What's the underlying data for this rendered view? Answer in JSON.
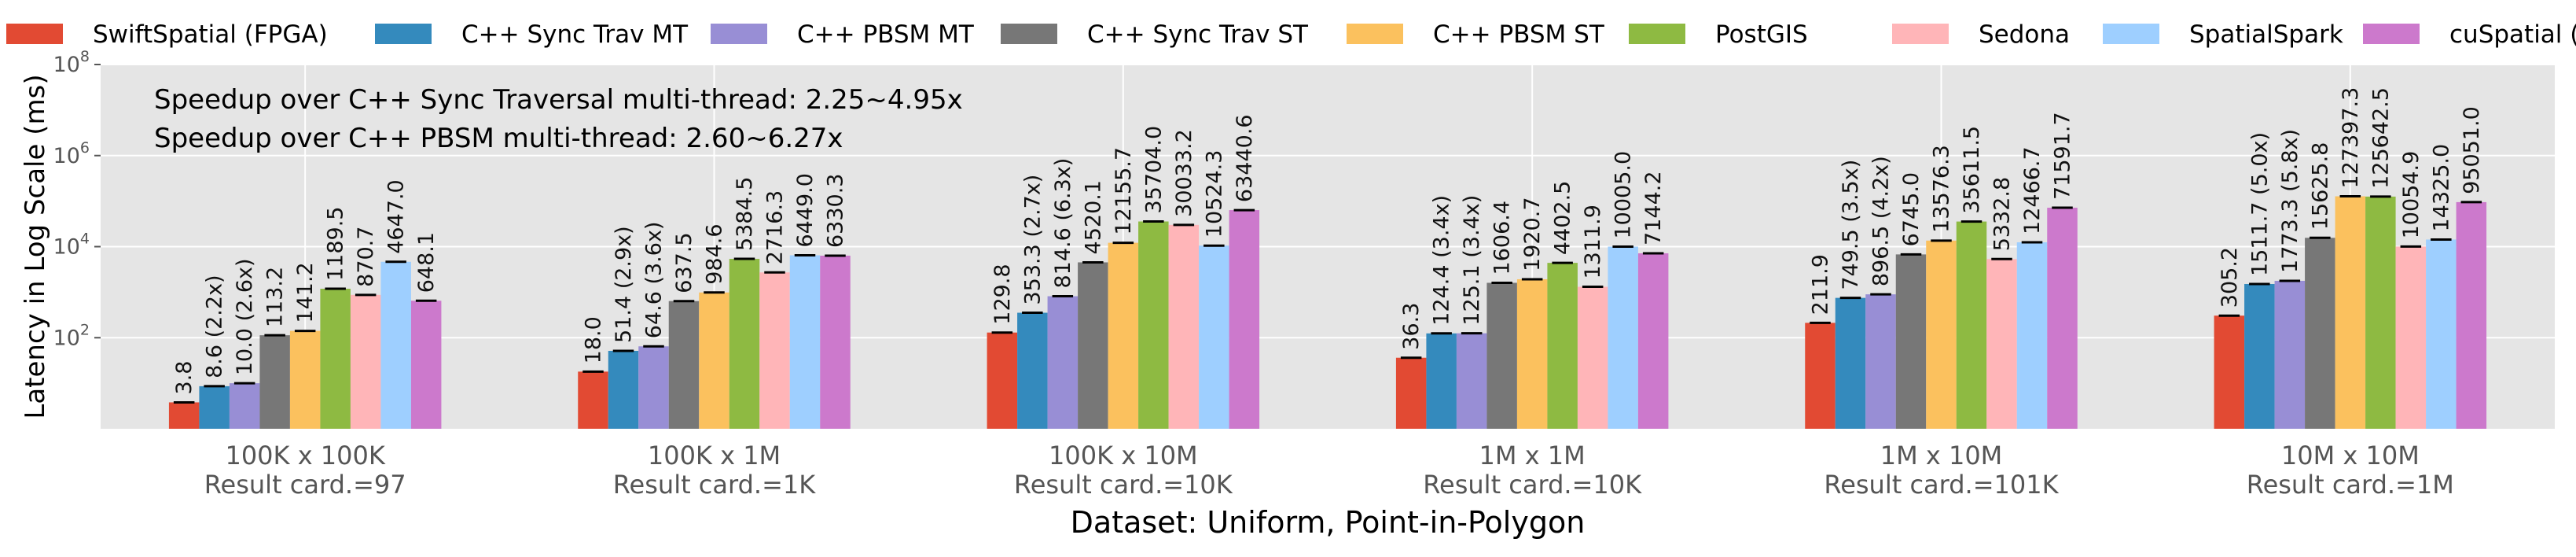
{
  "chart_data": {
    "type": "bar",
    "xlabel": "Dataset: Uniform, Point-in-Polygon",
    "ylabel": "Latency in Log Scale (ms)",
    "yscale": "log",
    "ylim": [
      1,
      100000000
    ],
    "yticks": [
      {
        "value": 100,
        "base": "10",
        "exp": "2"
      },
      {
        "value": 10000,
        "base": "10",
        "exp": "4"
      },
      {
        "value": 1000000,
        "base": "10",
        "exp": "6"
      },
      {
        "value": 100000000,
        "base": "10",
        "exp": "8"
      }
    ],
    "grid": true,
    "legend_position": "top",
    "annotations": [
      "Speedup over C++ Sync Traversal multi-thread: 2.25~4.95x",
      "Speedup over C++ PBSM multi-thread: 2.60~6.27x"
    ],
    "categories": [
      {
        "name": "100K x 100K",
        "sub": "Result card.=97"
      },
      {
        "name": "100K x 1M",
        "sub": "Result card.=1K"
      },
      {
        "name": "100K x 10M",
        "sub": "Result card.=10K"
      },
      {
        "name": "1M x 1M",
        "sub": "Result card.=10K"
      },
      {
        "name": "1M x 10M",
        "sub": "Result card.=101K"
      },
      {
        "name": "10M x 10M",
        "sub": "Result card.=1M"
      }
    ],
    "series": [
      {
        "name": "SwiftSpatial (FPGA)",
        "color": "#E24A33",
        "values": [
          3.8,
          18.0,
          129.8,
          36.3,
          211.9,
          305.2
        ],
        "labels": [
          "3.8",
          "18.0",
          "129.8",
          "36.3",
          "211.9",
          "305.2"
        ]
      },
      {
        "name": "C++ Sync Trav MT",
        "color": "#348ABD",
        "values": [
          8.6,
          51.4,
          353.3,
          124.4,
          749.5,
          1511.7
        ],
        "labels": [
          "8.6 (2.2x)",
          "51.4 (2.9x)",
          "353.3 (2.7x)",
          "124.4 (3.4x)",
          "749.5 (3.5x)",
          "1511.7 (5.0x)"
        ]
      },
      {
        "name": "C++ PBSM MT",
        "color": "#988ED5",
        "values": [
          10.0,
          64.6,
          814.6,
          125.1,
          896.5,
          1773.3
        ],
        "labels": [
          "10.0 (2.6x)",
          "64.6 (3.6x)",
          "814.6 (6.3x)",
          "125.1 (3.4x)",
          "896.5 (4.2x)",
          "1773.3 (5.8x)"
        ]
      },
      {
        "name": "C++ Sync Trav ST",
        "color": "#777777",
        "values": [
          113.2,
          637.5,
          4520.1,
          1606.4,
          6745.0,
          15625.8
        ],
        "labels": [
          "113.2",
          "637.5",
          "4520.1",
          "1606.4",
          "6745.0",
          "15625.8"
        ]
      },
      {
        "name": "C++ PBSM ST",
        "color": "#FBC15E",
        "values": [
          141.2,
          984.6,
          12155.7,
          1920.7,
          13576.3,
          127397.3
        ],
        "labels": [
          "141.2",
          "984.6",
          "12155.7",
          "1920.7",
          "13576.3",
          "127397.3"
        ]
      },
      {
        "name": "PostGIS",
        "color": "#8EBA42",
        "values": [
          1189.5,
          5384.5,
          35704.0,
          4402.5,
          35611.5,
          125642.5
        ],
        "labels": [
          "1189.5",
          "5384.5",
          "35704.0",
          "4402.5",
          "35611.5",
          "125642.5"
        ]
      },
      {
        "name": "Sedona",
        "color": "#FFB5B8",
        "values": [
          870.7,
          2716.3,
          30033.2,
          1311.9,
          5332.8,
          10054.9
        ],
        "labels": [
          "870.7",
          "2716.3",
          "30033.2",
          "1311.9",
          "5332.8",
          "10054.9"
        ]
      },
      {
        "name": "SpatialSpark",
        "color": "#9ECFFF",
        "values": [
          4647.0,
          6449.0,
          10524.3,
          10005.0,
          12466.7,
          14325.0
        ],
        "labels": [
          "4647.0",
          "6449.0",
          "10524.3",
          "10005.0",
          "12466.7",
          "14325.0"
        ]
      },
      {
        "name": "cuSpatial (GPU)",
        "color": "#CC79CC",
        "values": [
          648.1,
          6330.3,
          63440.6,
          7144.2,
          71591.7,
          95051.0
        ],
        "labels": [
          "648.1",
          "6330.3",
          "63440.6",
          "7144.2",
          "71591.7",
          "95051.0"
        ]
      }
    ]
  }
}
